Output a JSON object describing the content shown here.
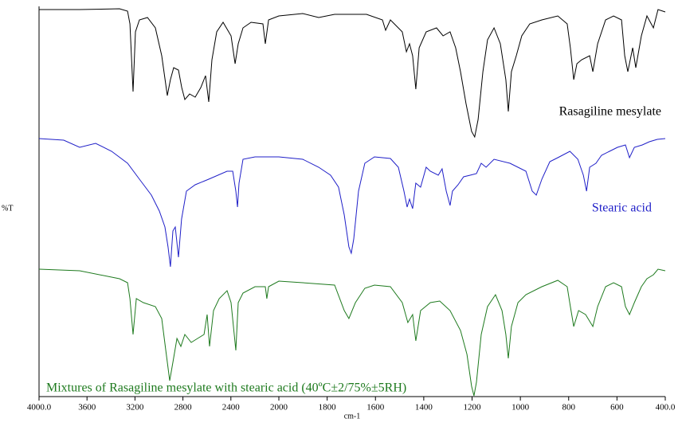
{
  "chart_data": {
    "type": "line",
    "xlabel": "cm-1",
    "ylabel": "%T",
    "xlim": [
      4000,
      400
    ],
    "xaxis_break": 2000,
    "ylim": [
      0,
      490
    ],
    "xticks": [
      {
        "value": 4000,
        "label": "4000.0"
      },
      3600,
      3200,
      2800,
      2400,
      2000,
      1800,
      1600,
      1400,
      1200,
      1000,
      800,
      600,
      {
        "value": 400,
        "label": "400.0"
      }
    ],
    "series": [
      {
        "name": "Rasagiline mesylate",
        "color": "#000000",
        "x": [
          4000,
          3661,
          3329,
          3262,
          3242,
          3216,
          3196,
          3163,
          3096,
          3030,
          2977,
          2930,
          2904,
          2877,
          2837,
          2810,
          2784,
          2744,
          2698,
          2651,
          2611,
          2585,
          2558,
          2518,
          2465,
          2399,
          2365,
          2339,
          2299,
          2232,
          2133,
          2113,
          2086,
          2000,
          1901,
          1835,
          1769,
          1637,
          1571,
          1558,
          1538,
          1489,
          1472,
          1459,
          1446,
          1433,
          1419,
          1390,
          1347,
          1320,
          1291,
          1268,
          1248,
          1225,
          1202,
          1189,
          1175,
          1155,
          1136,
          1109,
          1083,
          1060,
          1050,
          1037,
          1017,
          994,
          961,
          911,
          845,
          806,
          793,
          779,
          766,
          746,
          713,
          700,
          680,
          647,
          614,
          581,
          568,
          555,
          535,
          522,
          499,
          476,
          449,
          430,
          400
        ],
        "values": [
          486,
          486,
          487,
          484,
          468,
          383,
          458,
          473,
          476,
          463,
          428,
          378,
          398,
          413,
          410,
          388,
          373,
          380,
          376,
          388,
          403,
          370,
          423,
          458,
          470,
          453,
          418,
          443,
          463,
          470,
          468,
          443,
          473,
          478,
          481,
          476,
          480,
          480,
          473,
          460,
          473,
          458,
          433,
          443,
          428,
          386,
          438,
          458,
          463,
          453,
          458,
          438,
          408,
          368,
          333,
          326,
          348,
          408,
          448,
          463,
          443,
          398,
          358,
          408,
          428,
          453,
          468,
          473,
          478,
          468,
          438,
          398,
          418,
          423,
          428,
          408,
          443,
          473,
          478,
          473,
          428,
          408,
          438,
          413,
          453,
          478,
          463,
          486,
          483
        ]
      },
      {
        "name": "Stearic acid",
        "color": "#1f1fc8",
        "x": [
          4000,
          3794,
          3661,
          3528,
          3395,
          3262,
          3163,
          3063,
          2997,
          2950,
          2924,
          2904,
          2884,
          2864,
          2837,
          2811,
          2771,
          2698,
          2585,
          2432,
          2385,
          2359,
          2345,
          2332,
          2299,
          2199,
          2000,
          1901,
          1835,
          1786,
          1753,
          1729,
          1710,
          1700,
          1690,
          1670,
          1644,
          1604,
          1538,
          1505,
          1482,
          1469,
          1459,
          1446,
          1433,
          1413,
          1390,
          1373,
          1340,
          1324,
          1307,
          1291,
          1281,
          1258,
          1235,
          1208,
          1182,
          1162,
          1142,
          1109,
          1043,
          977,
          951,
          934,
          911,
          878,
          845,
          795,
          762,
          739,
          726,
          713,
          687,
          664,
          631,
          598,
          565,
          548,
          528,
          495,
          466,
          433,
          400
        ],
        "values": [
          324,
          322,
          313,
          318,
          308,
          293,
          273,
          253,
          233,
          213,
          188,
          163,
          208,
          213,
          175,
          223,
          258,
          266,
          273,
          283,
          283,
          258,
          238,
          268,
          298,
          301,
          301,
          298,
          288,
          278,
          263,
          228,
          188,
          180,
          198,
          258,
          293,
          301,
          299,
          288,
          258,
          238,
          248,
          236,
          268,
          263,
          288,
          283,
          278,
          286,
          258,
          240,
          258,
          266,
          276,
          278,
          280,
          293,
          288,
          298,
          293,
          283,
          258,
          253,
          273,
          295,
          300,
          308,
          298,
          278,
          258,
          288,
          293,
          303,
          308,
          313,
          316,
          300,
          313,
          316,
          320,
          323,
          324
        ]
      },
      {
        "name": "Mixtures of Rasagiline mesylate with stearic acid (40ºC±2/75%±5RH)",
        "color": "#1e7a1e",
        "x": [
          4000,
          3661,
          3329,
          3262,
          3242,
          3216,
          3189,
          3130,
          3030,
          2977,
          2943,
          2910,
          2884,
          2850,
          2817,
          2784,
          2731,
          2678,
          2624,
          2598,
          2578,
          2545,
          2498,
          2432,
          2399,
          2359,
          2339,
          2299,
          2199,
          2113,
          2100,
          2086,
          2000,
          1901,
          1769,
          1729,
          1710,
          1683,
          1644,
          1604,
          1538,
          1489,
          1466,
          1446,
          1433,
          1413,
          1373,
          1334,
          1291,
          1248,
          1221,
          1202,
          1192,
          1182,
          1162,
          1136,
          1103,
          1076,
          1060,
          1050,
          1037,
          1010,
          977,
          911,
          845,
          806,
          793,
          779,
          759,
          730,
          700,
          680,
          647,
          614,
          581,
          565,
          548,
          528,
          499,
          476,
          449,
          430,
          400
        ],
        "values": [
          160,
          158,
          148,
          143,
          123,
          78,
          123,
          118,
          113,
          98,
          58,
          20,
          43,
          73,
          63,
          78,
          68,
          73,
          78,
          103,
          63,
          108,
          123,
          133,
          118,
          58,
          118,
          130,
          138,
          138,
          123,
          138,
          145,
          143,
          140,
          108,
          98,
          118,
          136,
          140,
          138,
          118,
          93,
          103,
          70,
          108,
          118,
          120,
          108,
          83,
          53,
          13,
          1,
          18,
          78,
          113,
          128,
          108,
          78,
          48,
          88,
          118,
          128,
          138,
          146,
          138,
          113,
          88,
          108,
          103,
          88,
          113,
          138,
          143,
          138,
          113,
          103,
          118,
          138,
          148,
          153,
          160,
          158
        ]
      }
    ]
  }
}
